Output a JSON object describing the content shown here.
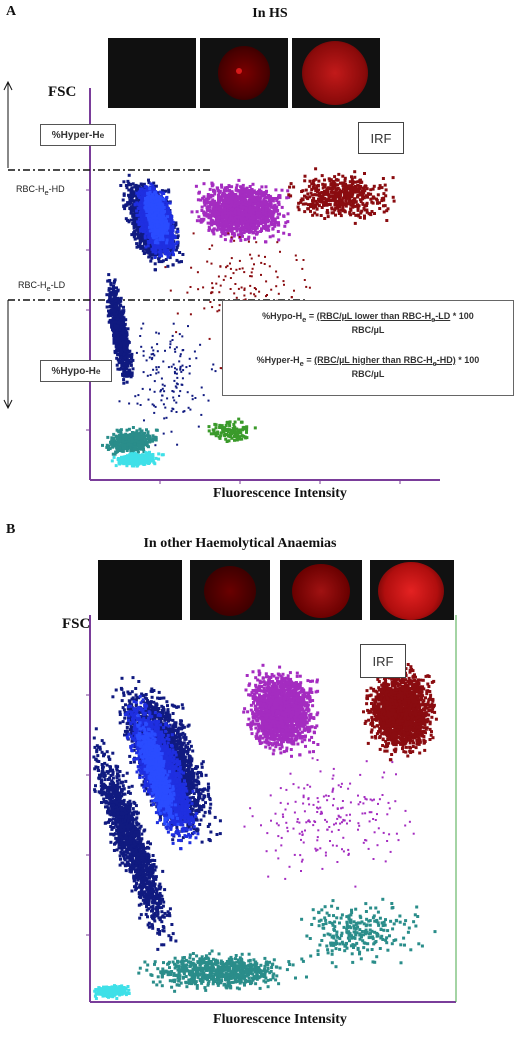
{
  "panel_a": {
    "letter": "A",
    "title": "In HS",
    "y_axis_label": "FSC",
    "x_axis_label": "Fluorescence Intensity",
    "irf_label": "IRF",
    "hyper_box_label": "%Hyper-H",
    "hyper_box_sub": "e",
    "hypo_box_label": "%Hypo-H",
    "hypo_box_sub": "e",
    "gate_hd": {
      "pre": "RBC-H",
      "sub": "e",
      "post": "-HD"
    },
    "gate_ld": {
      "pre": "RBC-H",
      "sub": "e",
      "post": "-LD"
    },
    "formula_hypo": {
      "lhs": "%Hypo-H",
      "lhs_sub": "e",
      "eq": " = ",
      "num": "(RBC/µL lower than RBC-H",
      "num_sub": "e",
      "num_post": "-LD",
      "tail": " * 100",
      "den": "RBC/µL"
    },
    "formula_hyper": {
      "lhs": "%Hyper-H",
      "lhs_sub": "e",
      "eq": " = ",
      "num": "(RBC/µL higher than RBC-H",
      "num_sub": "e",
      "num_post": "-HD)",
      "tail": " * 100",
      "den": "RBC/µL"
    }
  },
  "panel_b": {
    "letter": "B",
    "title": "In other Haemolytical Anaemias",
    "y_axis_label": "FSC",
    "x_axis_label": "Fluorescence Intensity",
    "irf_label": "IRF"
  },
  "colors": {
    "axis": "#7a3d9a",
    "dark_blue": "#101a80",
    "blue": "#1f2fe0",
    "bright_blue": "#2a4cff",
    "magenta": "#a42cc0",
    "dark_red": "#8a0c10",
    "teal": "#2a8d8a",
    "cyan": "#3fe0e8",
    "green": "#3a9a2a"
  }
}
